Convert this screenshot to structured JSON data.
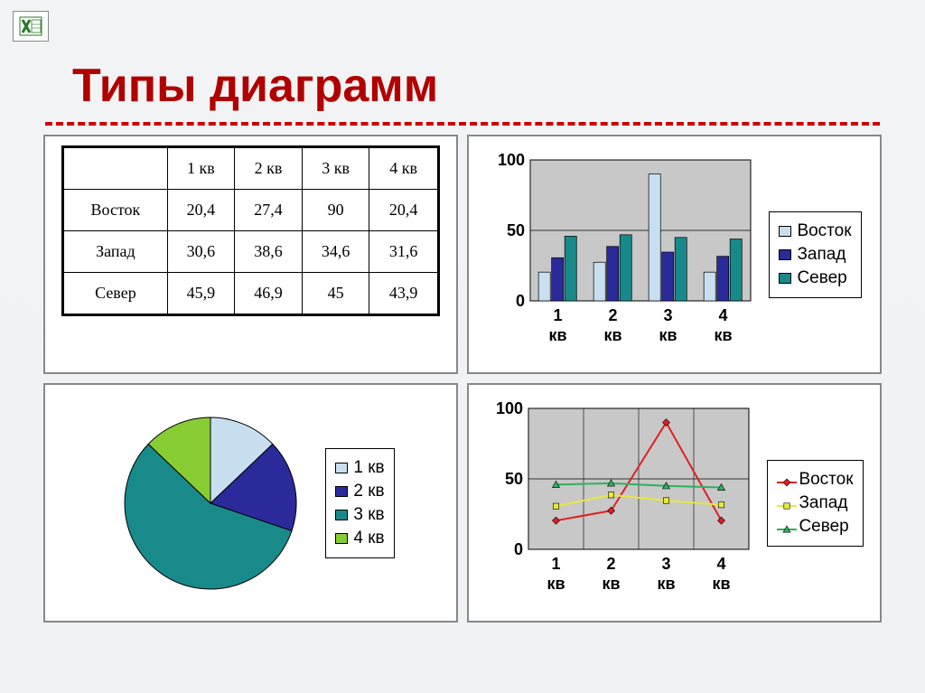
{
  "title": "Типы диаграмм",
  "title_color": "#b00000",
  "divider_color": "#cc0000",
  "table": {
    "columns": [
      "",
      "1 кв",
      "2 кв",
      "3 кв",
      "4 кв"
    ],
    "rows": [
      [
        "Восток",
        "20,4",
        "27,4",
        "90",
        "20,4"
      ],
      [
        "Запад",
        "30,6",
        "38,6",
        "34,6",
        "31,6"
      ],
      [
        "Север",
        "45,9",
        "46,9",
        "45",
        "43,9"
      ]
    ],
    "border_color": "#000000",
    "cell_fontsize": 18
  },
  "bar_chart": {
    "type": "bar",
    "categories": [
      "1 кв",
      "2 кв",
      "3 кв",
      "4 кв"
    ],
    "series": [
      {
        "name": "Восток",
        "color": "#c8dff0",
        "values": [
          20.4,
          27.4,
          90,
          20.4
        ]
      },
      {
        "name": "Запад",
        "color": "#2a2a9a",
        "values": [
          30.6,
          38.6,
          34.6,
          31.6
        ]
      },
      {
        "name": "Север",
        "color": "#198a8a",
        "values": [
          45.9,
          46.9,
          45,
          43.9
        ]
      }
    ],
    "ylim": [
      0,
      100
    ],
    "ytick_step": 50,
    "grid_color": "#000000",
    "background_color": "#c8c8c8",
    "axis_fontsize": 18,
    "axis_fontweight": "bold",
    "legend_labels": [
      "Восток",
      "Запад",
      "Север"
    ]
  },
  "pie_chart": {
    "type": "pie",
    "slices": [
      {
        "label": "1 кв",
        "value": 20.4,
        "color": "#c8dff0"
      },
      {
        "label": "2 кв",
        "value": 27.4,
        "color": "#2a2a9a"
      },
      {
        "label": "3 кв",
        "value": 90,
        "color": "#198a8a"
      },
      {
        "label": "4 кв",
        "value": 20.4,
        "color": "#88cc33"
      }
    ],
    "border_color": "#000000",
    "background_color": "#ffffff",
    "legend_labels": [
      "1 кв",
      "2 кв",
      "3 кв",
      "4 кв"
    ]
  },
  "line_chart": {
    "type": "line",
    "categories": [
      "1 кв",
      "2 кв",
      "3 кв",
      "4 кв"
    ],
    "series": [
      {
        "name": "Восток",
        "color": "#e02020",
        "marker": "diamond",
        "values": [
          20.4,
          27.4,
          90,
          20.4
        ]
      },
      {
        "name": "Запад",
        "color": "#e8e840",
        "marker": "square",
        "values": [
          30.6,
          38.6,
          34.6,
          31.6
        ]
      },
      {
        "name": "Север",
        "color": "#30b060",
        "marker": "triangle",
        "values": [
          45.9,
          46.9,
          45,
          43.9
        ]
      }
    ],
    "ylim": [
      0,
      100
    ],
    "ytick_step": 50,
    "grid_color": "#000000",
    "background_color": "#c8c8c8",
    "line_width": 2,
    "marker_size": 8,
    "axis_fontsize": 18,
    "legend_labels": [
      "Восток",
      "Запад",
      "Север"
    ]
  }
}
